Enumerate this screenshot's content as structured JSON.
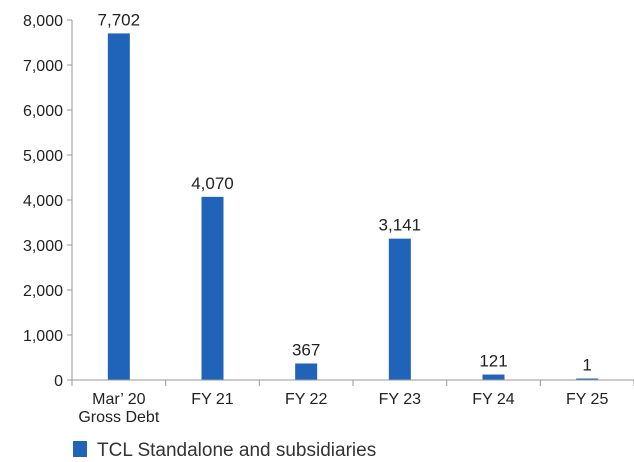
{
  "chart_data": {
    "type": "bar",
    "categories": [
      [
        "Mar’ 20",
        "Gross Debt"
      ],
      [
        "FY 21"
      ],
      [
        "FY 22"
      ],
      [
        "FY 23"
      ],
      [
        "FY 24"
      ],
      [
        "FY 25"
      ]
    ],
    "series": [
      {
        "name": "TCL Standalone and subsidiaries",
        "values": [
          7702,
          4070,
          367,
          3141,
          121,
          1
        ],
        "data_labels": [
          "7,702",
          "4,070",
          "367",
          "3,141",
          "121",
          "1"
        ],
        "color": "#1f64b8"
      }
    ],
    "yticks": [
      0,
      1000,
      2000,
      3000,
      4000,
      5000,
      6000,
      7000,
      8000
    ],
    "ytick_labels": [
      "0",
      "1,000",
      "2,000",
      "3,000",
      "4,000",
      "5,000",
      "6,000",
      "7,000",
      "8,000"
    ],
    "ylim": [
      0,
      8000
    ],
    "grid": false,
    "legend": {
      "position": "bottom-left"
    },
    "axis_color": "#999999"
  }
}
